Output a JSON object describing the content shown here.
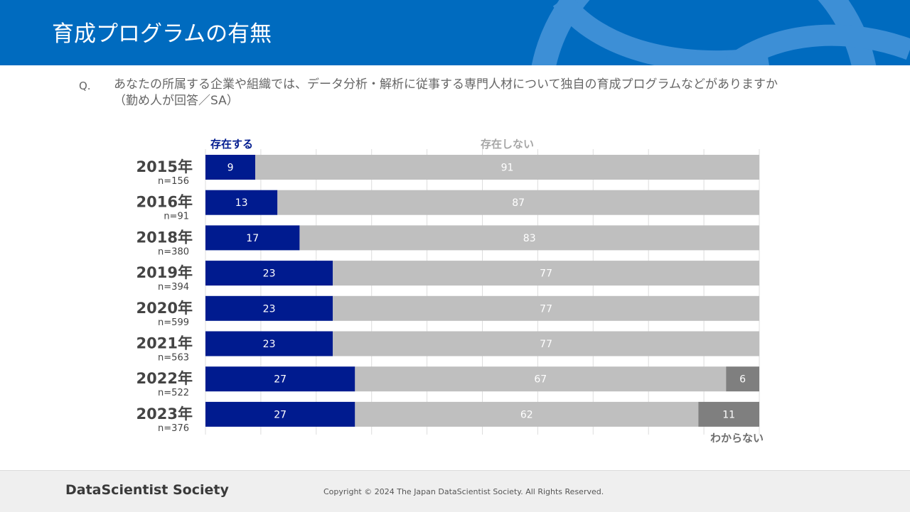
{
  "header": {
    "title": "育成プログラムの有無"
  },
  "question": {
    "marker": "Q.",
    "text": "あなたの所属する企業や組織では、データ分析・解析に従事する専門人材について独自の育成プログラムなどがありますか（勤め人が回答／SA）"
  },
  "chart_data": {
    "type": "bar",
    "orientation": "horizontal",
    "stacked": true,
    "categories": [
      "2015年",
      "2016年",
      "2018年",
      "2019年",
      "2020年",
      "2021年",
      "2022年",
      "2023年"
    ],
    "sample_sizes": [
      "n=156",
      "n=91",
      "n=380",
      "n=394",
      "n=599",
      "n=563",
      "n=522",
      "n=376"
    ],
    "series": [
      {
        "name": "存在する",
        "color": "#001b8f",
        "values": [
          9,
          13,
          17,
          23,
          23,
          23,
          27,
          27
        ],
        "labels": [
          "9",
          "13",
          "17",
          "23",
          "23",
          "23",
          "27",
          "27"
        ]
      },
      {
        "name": "存在しない",
        "color": "#bfbfbf",
        "values": [
          91,
          87,
          83,
          77,
          77,
          77,
          67,
          62
        ],
        "labels": [
          "91",
          "87",
          "83",
          "77",
          "77",
          "77",
          "67",
          "62"
        ]
      },
      {
        "name": "わからない",
        "color": "#7f7f7f",
        "values": [
          0,
          0,
          0,
          0,
          0,
          0,
          6,
          11
        ],
        "labels": [
          "",
          "",
          "",
          "",
          "",
          "",
          "6",
          "11"
        ]
      }
    ],
    "xlim": [
      0,
      100
    ],
    "grid": true,
    "legend": "inline labels above and below the bars"
  },
  "footer": {
    "brand": "DataScientist Society",
    "copyright": "Copyright © 2024  The Japan DataScientist Society. All Rights Reserved."
  }
}
